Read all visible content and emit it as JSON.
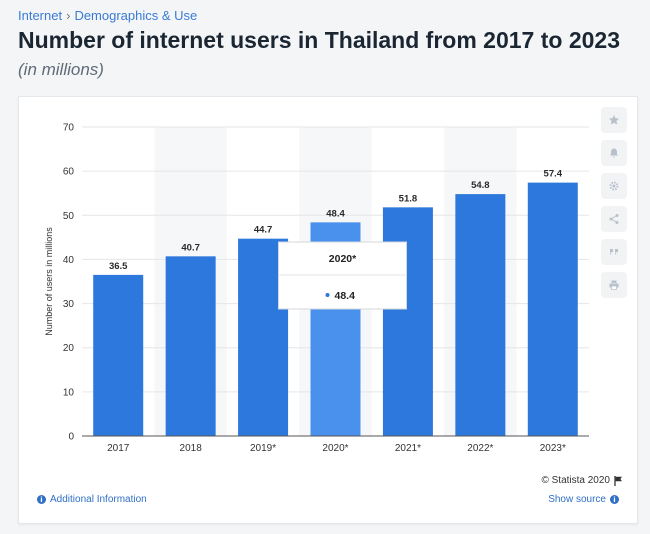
{
  "breadcrumb": {
    "items": [
      "Internet",
      "Demographics & Use"
    ],
    "separator": "›"
  },
  "title": "Number of internet users in Thailand from 2017 to 2023",
  "subtitle": "(in millions)",
  "chart_data": {
    "type": "bar",
    "categories": [
      "2017",
      "2018",
      "2019*",
      "2020*",
      "2021*",
      "2022*",
      "2023*"
    ],
    "values": [
      36.5,
      40.7,
      44.7,
      48.4,
      51.8,
      54.8,
      57.4
    ],
    "value_labels": [
      "36.5",
      "40.7",
      "44.7",
      "48.4",
      "51.8",
      "54.8",
      "57.4"
    ],
    "title": "Number of internet users in Thailand from 2017 to 2023",
    "xlabel": "",
    "ylabel": "Number of users in millions",
    "ylim": [
      0,
      70
    ],
    "yticks": [
      0,
      10,
      20,
      30,
      40,
      50,
      60,
      70
    ],
    "grid": true,
    "highlighted_index": 3,
    "colors": {
      "bar": "#2d78dc",
      "bar_highlight": "#4a90ed",
      "alt_band": "#f6f7f9",
      "grid": "#e6e6e6",
      "axis": "#555555"
    }
  },
  "tooltip": {
    "title": "2020*",
    "value": "48.4",
    "marker_color": "#2d78dc"
  },
  "side_tools": [
    "star-icon",
    "bell-icon",
    "gear-icon",
    "share-icon",
    "quote-icon",
    "print-icon"
  ],
  "credit": {
    "text": "© Statista 2020",
    "icon": "flag-icon"
  },
  "footer": {
    "additional_info": "Additional Information",
    "show_source": "Show source",
    "info_icon": "info-icon"
  }
}
